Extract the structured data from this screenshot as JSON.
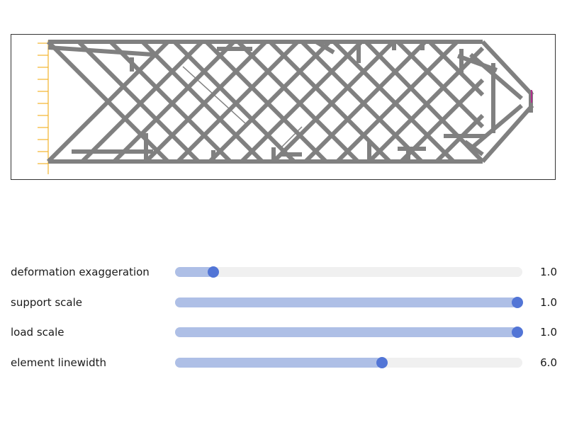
{
  "colors": {
    "element": "#808080",
    "support": "#f2b32c",
    "load": "#b0308c",
    "slider_fill": "#aebfe6",
    "slider_track": "#f0f0f0",
    "slider_knob": "#5275d6"
  },
  "sliders": [
    {
      "label": "deformation exaggeration",
      "value_text": "1.0",
      "fraction": 0.11
    },
    {
      "label": "support scale",
      "value_text": "1.0",
      "fraction": 0.985
    },
    {
      "label": "load scale",
      "value_text": "1.0",
      "fraction": 0.985
    },
    {
      "label": "element linewidth",
      "value_text": "6.0",
      "fraction": 0.595
    }
  ]
}
